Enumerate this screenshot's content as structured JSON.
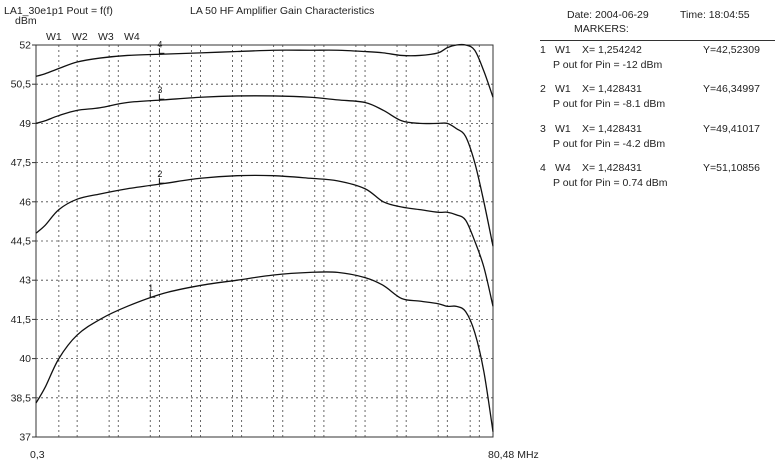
{
  "chart_data": {
    "type": "line",
    "title": "LA 50 HF Amplifier Gain Characteristics",
    "subtitle": "LA1_30e1p1 Pout = f(f)",
    "ylabel": "dBm",
    "xlabel": "",
    "xlim_labels": [
      "0,3",
      "80,48 MHz"
    ],
    "ylim": [
      37,
      52
    ],
    "yticks": [
      37,
      38.5,
      40,
      41.5,
      43,
      44.5,
      46,
      47.5,
      49,
      50.5,
      52
    ],
    "ytick_labels": [
      "37",
      "38,5",
      "40",
      "41,5",
      "43",
      "44,5",
      "46",
      "47,5",
      "49",
      "50,5",
      "52"
    ],
    "x_fraction_of_span": [
      0,
      0.02,
      0.05,
      0.09,
      0.14,
      0.2,
      0.28,
      0.36,
      0.44,
      0.52,
      0.6,
      0.66,
      0.72,
      0.76,
      0.8,
      0.84,
      0.88,
      0.9,
      0.92,
      0.94,
      0.96,
      0.98,
      1
    ],
    "series": [
      {
        "marker": "1",
        "values": [
          38.3,
          38.9,
          40.0,
          40.9,
          41.5,
          42.0,
          42.5,
          42.8,
          43.0,
          43.2,
          43.3,
          43.3,
          43.1,
          42.8,
          42.3,
          42.2,
          42.1,
          42.0,
          42.0,
          41.8,
          41.0,
          39.5,
          37.2
        ]
      },
      {
        "marker": "2",
        "values": [
          44.8,
          45.1,
          45.7,
          46.1,
          46.3,
          46.5,
          46.7,
          46.9,
          47.0,
          47.0,
          46.9,
          46.8,
          46.5,
          46.0,
          45.8,
          45.7,
          45.6,
          45.6,
          45.5,
          45.3,
          44.5,
          43.5,
          42.0
        ]
      },
      {
        "marker": "3",
        "values": [
          49.0,
          49.1,
          49.3,
          49.5,
          49.6,
          49.8,
          49.9,
          50.0,
          50.05,
          50.05,
          50.0,
          49.9,
          49.8,
          49.5,
          49.1,
          49.0,
          49.0,
          49.0,
          48.8,
          48.5,
          47.5,
          46.0,
          44.3
        ]
      },
      {
        "marker": "4",
        "values": [
          50.8,
          50.9,
          51.1,
          51.35,
          51.5,
          51.6,
          51.65,
          51.7,
          51.75,
          51.8,
          51.8,
          51.8,
          51.75,
          51.7,
          51.6,
          51.6,
          51.7,
          51.9,
          52.0,
          52.0,
          51.8,
          51.0,
          50.0
        ]
      }
    ],
    "trace_labels": [
      "W1",
      "W2",
      "W3",
      "W4"
    ],
    "grid": true
  },
  "header": {
    "date": "Date: 2004-06-29",
    "time": "Time: 18:04:55",
    "markers_title": "MARKERS:"
  },
  "markers": [
    {
      "num": "1",
      "trace": "W1",
      "x": "X= 1,254242",
      "y": "Y=42,52309",
      "desc": "P out for Pin = -12 dBm"
    },
    {
      "num": "2",
      "trace": "W1",
      "x": "X= 1,428431",
      "y": "Y=46,34997",
      "desc": "P out for Pin = -8.1 dBm"
    },
    {
      "num": "3",
      "trace": "W1",
      "x": "X= 1,428431",
      "y": "Y=49,41017",
      "desc": "P out for Pin = -4.2 dBm"
    },
    {
      "num": "4",
      "trace": "W4",
      "x": "X= 1,428431",
      "y": "Y=51,10856",
      "desc": "P out for Pin = 0.74 dBm"
    }
  ]
}
